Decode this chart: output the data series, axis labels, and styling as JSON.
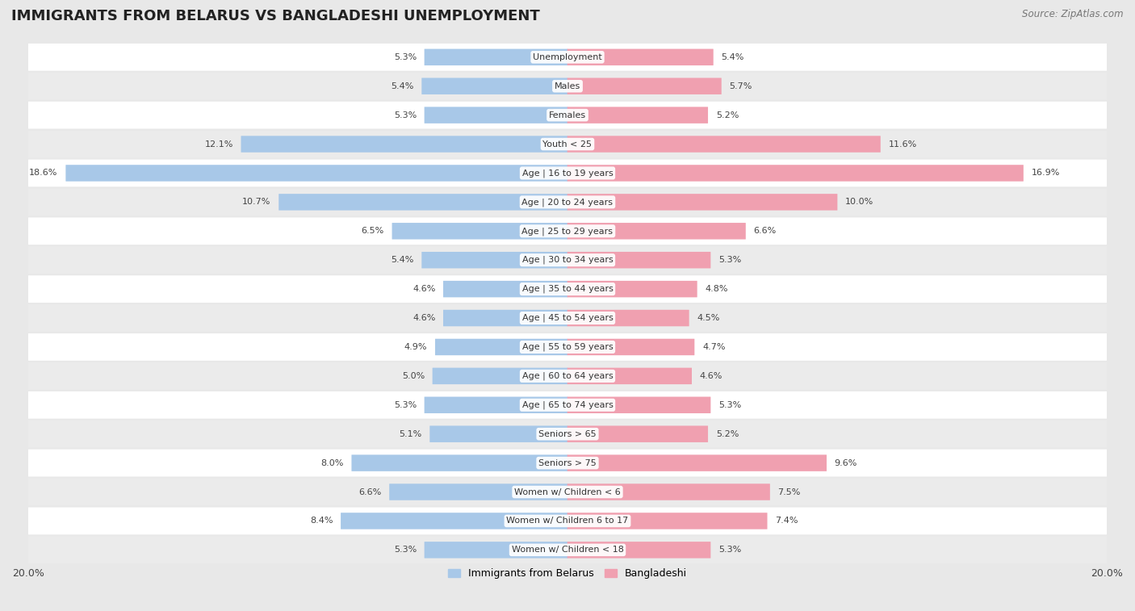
{
  "title": "IMMIGRANTS FROM BELARUS VS BANGLADESHI UNEMPLOYMENT",
  "source": "Source: ZipAtlas.com",
  "categories": [
    "Unemployment",
    "Males",
    "Females",
    "Youth < 25",
    "Age | 16 to 19 years",
    "Age | 20 to 24 years",
    "Age | 25 to 29 years",
    "Age | 30 to 34 years",
    "Age | 35 to 44 years",
    "Age | 45 to 54 years",
    "Age | 55 to 59 years",
    "Age | 60 to 64 years",
    "Age | 65 to 74 years",
    "Seniors > 65",
    "Seniors > 75",
    "Women w/ Children < 6",
    "Women w/ Children 6 to 17",
    "Women w/ Children < 18"
  ],
  "belarus_values": [
    5.3,
    5.4,
    5.3,
    12.1,
    18.6,
    10.7,
    6.5,
    5.4,
    4.6,
    4.6,
    4.9,
    5.0,
    5.3,
    5.1,
    8.0,
    6.6,
    8.4,
    5.3
  ],
  "bangladeshi_values": [
    5.4,
    5.7,
    5.2,
    11.6,
    16.9,
    10.0,
    6.6,
    5.3,
    4.8,
    4.5,
    4.7,
    4.6,
    5.3,
    5.2,
    9.6,
    7.5,
    7.4,
    5.3
  ],
  "belarus_color": "#a8c8e8",
  "bangladeshi_color": "#f0a0b0",
  "belarus_label": "Immigrants from Belarus",
  "bangladeshi_label": "Bangladeshi",
  "axis_max": 20.0,
  "bg_color": "#e8e8e8",
  "row_color_even": "#ffffff",
  "row_color_odd": "#ebebeb",
  "title_fontsize": 13,
  "source_fontsize": 8.5,
  "label_fontsize": 8,
  "cat_fontsize": 8,
  "legend_fontsize": 9
}
